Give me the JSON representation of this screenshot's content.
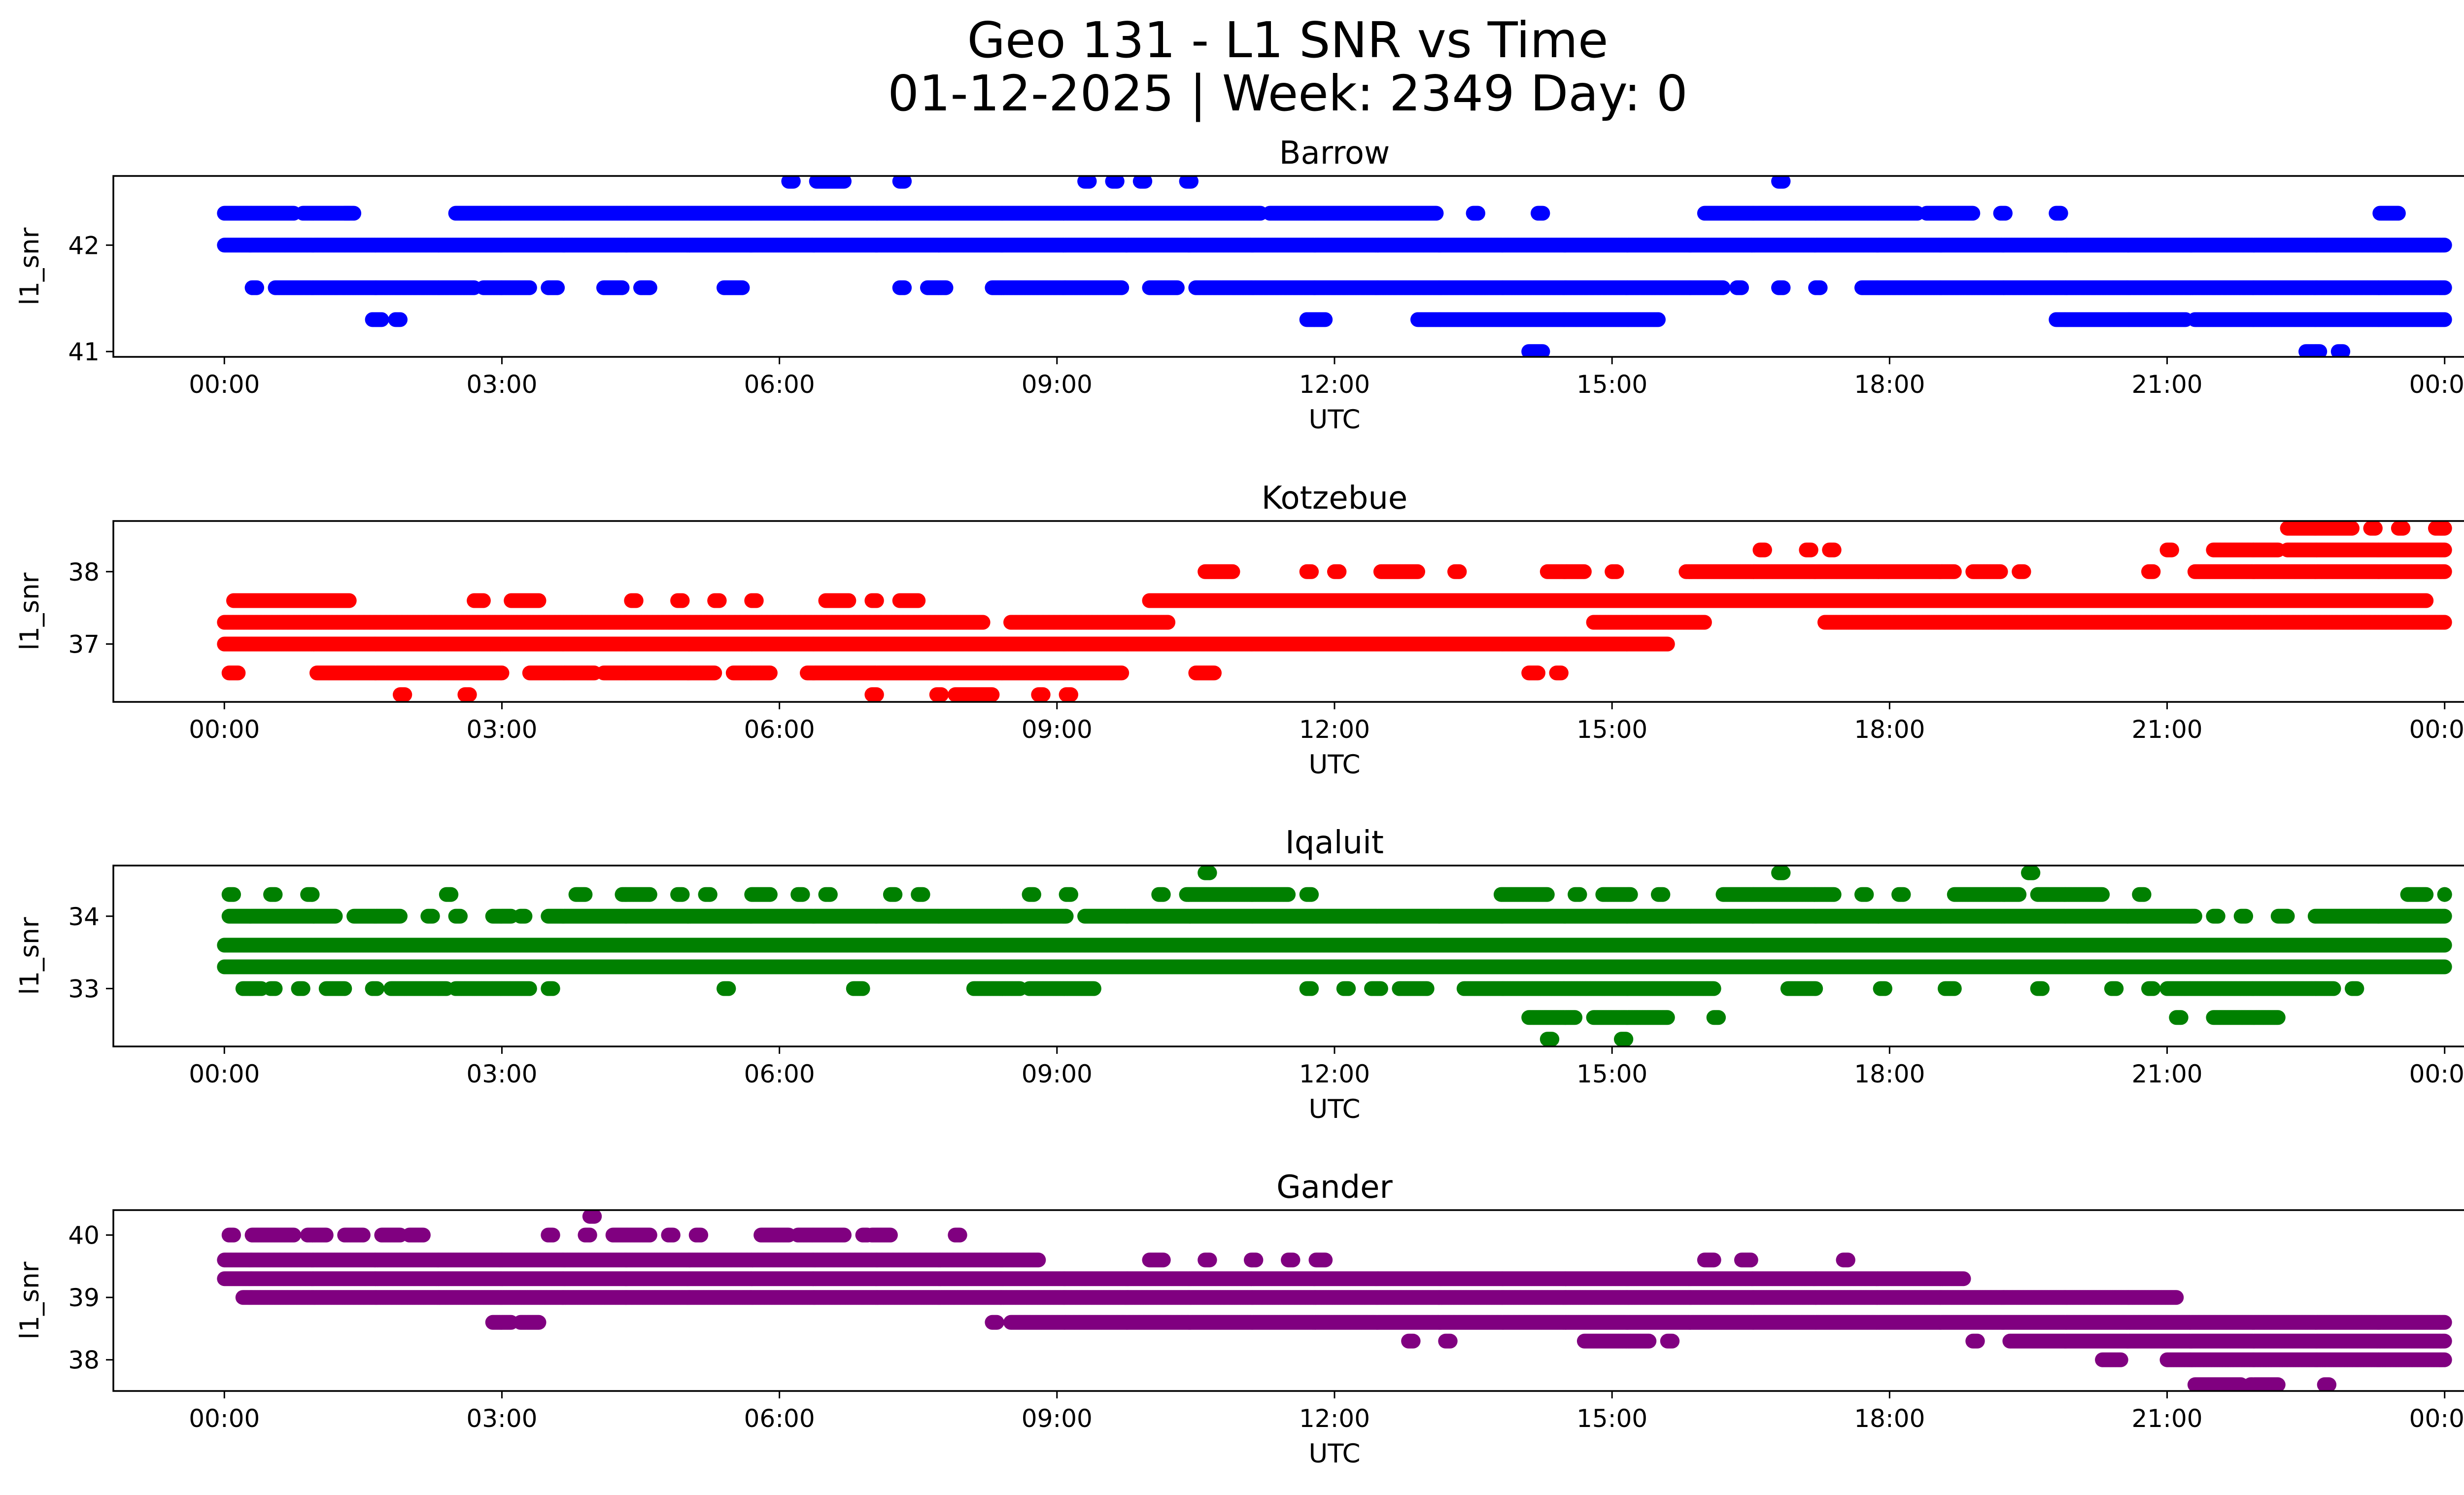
{
  "figure": {
    "title_line1": "Geo 131 - L1 SNR vs Time",
    "title_line2": "01-12-2025 | Week: 2349 Day: 0"
  },
  "chart_data": [
    {
      "type": "scatter",
      "title": "Barrow",
      "xlabel": "UTC",
      "ylabel": "l1_snr",
      "color": "#0000ff",
      "xlim_hours": [
        -1.2,
        25.2
      ],
      "ylim": [
        40.95,
        42.65
      ],
      "yticks": [
        41,
        42
      ],
      "xtick_labels": [
        "00:00",
        "03:00",
        "06:00",
        "09:00",
        "12:00",
        "15:00",
        "18:00",
        "21:00",
        "00:00"
      ],
      "levels": [
        {
          "y": 42.0,
          "ranges": [
            [
              0,
              24
            ]
          ]
        },
        {
          "y": 42.3,
          "ranges": [
            [
              0,
              0.75
            ],
            [
              0.85,
              1.4
            ],
            [
              1.3,
              1.35
            ],
            [
              2.5,
              11.2
            ],
            [
              11.3,
              13.1
            ],
            [
              13.5,
              13.55
            ],
            [
              14.2,
              14.25
            ],
            [
              16.0,
              18.3
            ],
            [
              18.4,
              18.9
            ],
            [
              19.2,
              19.25
            ],
            [
              19.8,
              19.85
            ],
            [
              23.3,
              23.5
            ]
          ]
        },
        {
          "y": 41.6,
          "ranges": [
            [
              0.3,
              0.35
            ],
            [
              0.55,
              2.7
            ],
            [
              2.8,
              3.3
            ],
            [
              3.5,
              3.6
            ],
            [
              4.1,
              4.3
            ],
            [
              4.5,
              4.6
            ],
            [
              5.4,
              5.6
            ],
            [
              7.3,
              7.35
            ],
            [
              7.6,
              7.8
            ],
            [
              8.3,
              9.7
            ],
            [
              10.0,
              10.3
            ],
            [
              10.5,
              16.2
            ],
            [
              16.35,
              16.4
            ],
            [
              16.8,
              16.85
            ],
            [
              17.2,
              17.25
            ],
            [
              17.7,
              24
            ]
          ]
        },
        {
          "y": 41.3,
          "ranges": [
            [
              1.6,
              1.7
            ],
            [
              1.85,
              1.9
            ],
            [
              11.7,
              11.9
            ],
            [
              12.9,
              15.5
            ],
            [
              19.8,
              21.2
            ],
            [
              21.3,
              24
            ]
          ]
        },
        {
          "y": 42.6,
          "ranges": [
            [
              6.1,
              6.15
            ],
            [
              6.4,
              6.7
            ],
            [
              7.3,
              7.35
            ],
            [
              9.3,
              9.35
            ],
            [
              9.6,
              9.65
            ],
            [
              9.9,
              9.95
            ],
            [
              10.4,
              10.45
            ],
            [
              16.8,
              16.85
            ]
          ]
        },
        {
          "y": 41.0,
          "ranges": [
            [
              14.1,
              14.25
            ],
            [
              22.5,
              22.65
            ],
            [
              22.85,
              22.9
            ]
          ]
        }
      ]
    },
    {
      "type": "scatter",
      "title": "Kotzebue",
      "xlabel": "UTC",
      "ylabel": "l1_snr",
      "color": "#ff0000",
      "xlim_hours": [
        -1.2,
        25.2
      ],
      "ylim": [
        36.2,
        38.7
      ],
      "yticks": [
        37,
        38
      ],
      "xtick_labels": [
        "00:00",
        "03:00",
        "06:00",
        "09:00",
        "12:00",
        "15:00",
        "18:00",
        "21:00",
        "00:00"
      ],
      "levels": [
        {
          "y": 37.0,
          "ranges": [
            [
              0,
              15.6
            ]
          ]
        },
        {
          "y": 37.3,
          "ranges": [
            [
              0,
              8.2
            ],
            [
              8.5,
              10.2
            ],
            [
              14.8,
              16.0
            ],
            [
              17.3,
              24
            ]
          ]
        },
        {
          "y": 37.6,
          "ranges": [
            [
              0.1,
              1.35
            ],
            [
              2.7,
              2.8
            ],
            [
              3.1,
              3.4
            ],
            [
              4.4,
              4.45
            ],
            [
              4.9,
              4.95
            ],
            [
              5.3,
              5.35
            ],
            [
              5.7,
              5.75
            ],
            [
              6.5,
              6.75
            ],
            [
              7.0,
              7.05
            ],
            [
              7.3,
              7.5
            ],
            [
              10.0,
              23.8
            ]
          ]
        },
        {
          "y": 36.6,
          "ranges": [
            [
              0.05,
              0.15
            ],
            [
              1.0,
              3.0
            ],
            [
              3.3,
              4.0
            ],
            [
              4.1,
              5.3
            ],
            [
              5.5,
              5.9
            ],
            [
              6.3,
              9.7
            ],
            [
              10.5,
              10.7
            ],
            [
              14.1,
              14.2
            ],
            [
              14.4,
              14.45
            ]
          ]
        },
        {
          "y": 36.3,
          "ranges": [
            [
              1.9,
              1.95
            ],
            [
              2.6,
              2.65
            ],
            [
              7.0,
              7.05
            ],
            [
              7.7,
              7.75
            ],
            [
              7.9,
              8.3
            ],
            [
              8.8,
              8.85
            ],
            [
              9.1,
              9.15
            ]
          ]
        },
        {
          "y": 38.0,
          "ranges": [
            [
              10.6,
              10.9
            ],
            [
              11.7,
              11.75
            ],
            [
              12.0,
              12.05
            ],
            [
              12.5,
              12.9
            ],
            [
              13.3,
              13.35
            ],
            [
              14.3,
              14.7
            ],
            [
              15.0,
              15.05
            ],
            [
              15.8,
              18.7
            ],
            [
              18.9,
              19.2
            ],
            [
              19.4,
              19.45
            ],
            [
              20.8,
              20.85
            ],
            [
              21.3,
              24
            ]
          ]
        },
        {
          "y": 38.3,
          "ranges": [
            [
              16.6,
              16.65
            ],
            [
              17.1,
              17.15
            ],
            [
              17.35,
              17.4
            ],
            [
              21.0,
              21.05
            ],
            [
              21.5,
              22.2
            ],
            [
              22.3,
              24
            ]
          ]
        },
        {
          "y": 38.6,
          "ranges": [
            [
              22.3,
              23.0
            ],
            [
              23.2,
              23.25
            ],
            [
              23.5,
              23.55
            ],
            [
              23.9,
              24
            ]
          ]
        }
      ]
    },
    {
      "type": "scatter",
      "title": "Iqaluit",
      "xlabel": "UTC",
      "ylabel": "l1_snr",
      "color": "#008000",
      "xlim_hours": [
        -1.2,
        25.2
      ],
      "ylim": [
        32.2,
        34.7
      ],
      "yticks": [
        33,
        34
      ],
      "xtick_labels": [
        "00:00",
        "03:00",
        "06:00",
        "09:00",
        "12:00",
        "15:00",
        "18:00",
        "21:00",
        "00:00"
      ],
      "levels": [
        {
          "y": 33.6,
          "ranges": [
            [
              0,
              24
            ]
          ]
        },
        {
          "y": 33.3,
          "ranges": [
            [
              0,
              24
            ]
          ]
        },
        {
          "y": 34.0,
          "ranges": [
            [
              0.05,
              1.2
            ],
            [
              1.4,
              1.9
            ],
            [
              2.2,
              2.25
            ],
            [
              2.5,
              2.55
            ],
            [
              2.9,
              3.1
            ],
            [
              3.2,
              3.25
            ],
            [
              3.5,
              9.1
            ],
            [
              9.3,
              21.3
            ],
            [
              21.5,
              21.55
            ],
            [
              21.8,
              21.85
            ],
            [
              22.2,
              22.3
            ],
            [
              22.6,
              24
            ]
          ]
        },
        {
          "y": 33.0,
          "ranges": [
            [
              0.2,
              0.4
            ],
            [
              0.5,
              0.55
            ],
            [
              0.8,
              0.85
            ],
            [
              1.1,
              1.3
            ],
            [
              1.6,
              1.65
            ],
            [
              1.8,
              2.4
            ],
            [
              2.5,
              3.3
            ],
            [
              3.5,
              3.55
            ],
            [
              5.4,
              5.45
            ],
            [
              6.8,
              6.9
            ],
            [
              8.1,
              8.6
            ],
            [
              8.7,
              9.4
            ],
            [
              11.7,
              11.75
            ],
            [
              12.1,
              12.15
            ],
            [
              12.4,
              12.5
            ],
            [
              12.7,
              13.0
            ],
            [
              13.4,
              16.1
            ],
            [
              16.9,
              17.2
            ],
            [
              17.9,
              17.95
            ],
            [
              18.6,
              18.7
            ],
            [
              19.6,
              19.65
            ],
            [
              20.4,
              20.45
            ],
            [
              20.8,
              20.85
            ],
            [
              21.0,
              22.8
            ],
            [
              23.0,
              23.05
            ]
          ]
        },
        {
          "y": 34.3,
          "ranges": [
            [
              0.05,
              0.1
            ],
            [
              0.5,
              0.55
            ],
            [
              0.9,
              0.95
            ],
            [
              2.4,
              2.45
            ],
            [
              3.8,
              3.9
            ],
            [
              4.3,
              4.6
            ],
            [
              4.9,
              4.95
            ],
            [
              5.2,
              5.25
            ],
            [
              5.7,
              5.9
            ],
            [
              6.2,
              6.25
            ],
            [
              6.5,
              6.55
            ],
            [
              7.2,
              7.25
            ],
            [
              7.5,
              7.55
            ],
            [
              8.7,
              8.75
            ],
            [
              9.1,
              9.15
            ],
            [
              10.1,
              10.15
            ],
            [
              10.4,
              11.5
            ],
            [
              11.7,
              11.75
            ],
            [
              13.8,
              14.3
            ],
            [
              14.6,
              14.65
            ],
            [
              14.9,
              15.2
            ],
            [
              15.5,
              15.55
            ],
            [
              16.2,
              17.4
            ],
            [
              17.7,
              17.75
            ],
            [
              18.1,
              18.15
            ],
            [
              18.7,
              19.4
            ],
            [
              19.6,
              20.3
            ],
            [
              20.7,
              20.75
            ],
            [
              23.6,
              23.8
            ],
            [
              24.0,
              24
            ]
          ]
        },
        {
          "y": 34.6,
          "ranges": [
            [
              10.6,
              10.65
            ],
            [
              16.8,
              16.85
            ],
            [
              19.5,
              19.55
            ]
          ]
        },
        {
          "y": 32.6,
          "ranges": [
            [
              14.1,
              14.6
            ],
            [
              14.8,
              15.6
            ],
            [
              16.1,
              16.15
            ],
            [
              21.1,
              21.15
            ],
            [
              21.5,
              22.2
            ]
          ]
        },
        {
          "y": 32.3,
          "ranges": [
            [
              14.3,
              14.35
            ],
            [
              15.1,
              15.15
            ]
          ]
        }
      ]
    },
    {
      "type": "scatter",
      "title": "Gander",
      "xlabel": "UTC",
      "ylabel": "l1_snr",
      "color": "#800080",
      "xlim_hours": [
        -1.2,
        25.2
      ],
      "ylim": [
        37.5,
        40.4
      ],
      "yticks": [
        38,
        39,
        40
      ],
      "xtick_labels": [
        "00:00",
        "03:00",
        "06:00",
        "09:00",
        "12:00",
        "15:00",
        "18:00",
        "21:00",
        "00:00"
      ],
      "levels": [
        {
          "y": 39.3,
          "ranges": [
            [
              0,
              18.8
            ]
          ]
        },
        {
          "y": 39.0,
          "ranges": [
            [
              0.2,
              21.1
            ]
          ]
        },
        {
          "y": 39.6,
          "ranges": [
            [
              0,
              8.8
            ],
            [
              10.0,
              10.15
            ],
            [
              10.6,
              10.65
            ],
            [
              11.1,
              11.15
            ],
            [
              11.5,
              11.55
            ],
            [
              11.8,
              11.9
            ],
            [
              16.0,
              16.1
            ],
            [
              16.4,
              16.5
            ],
            [
              17.5,
              17.55
            ]
          ]
        },
        {
          "y": 40.0,
          "ranges": [
            [
              0.05,
              0.1
            ],
            [
              0.3,
              0.75
            ],
            [
              0.9,
              1.1
            ],
            [
              1.3,
              1.5
            ],
            [
              1.7,
              1.9
            ],
            [
              2.0,
              2.15
            ],
            [
              3.5,
              3.55
            ],
            [
              3.9,
              3.95
            ],
            [
              4.2,
              4.6
            ],
            [
              4.8,
              4.85
            ],
            [
              5.1,
              5.15
            ],
            [
              5.8,
              6.1
            ],
            [
              6.2,
              6.7
            ],
            [
              6.9,
              6.95
            ],
            [
              7.0,
              7.2
            ],
            [
              7.9,
              7.95
            ]
          ]
        },
        {
          "y": 40.3,
          "ranges": [
            [
              3.95,
              4.0
            ]
          ]
        },
        {
          "y": 38.6,
          "ranges": [
            [
              2.9,
              3.1
            ],
            [
              3.2,
              3.4
            ],
            [
              8.3,
              8.35
            ],
            [
              8.5,
              24
            ]
          ]
        },
        {
          "y": 38.3,
          "ranges": [
            [
              12.8,
              12.85
            ],
            [
              13.2,
              13.25
            ],
            [
              14.7,
              15.4
            ],
            [
              15.6,
              15.65
            ],
            [
              18.9,
              18.95
            ],
            [
              19.3,
              24
            ]
          ]
        },
        {
          "y": 38.0,
          "ranges": [
            [
              20.3,
              20.5
            ],
            [
              21.0,
              24
            ]
          ]
        },
        {
          "y": 37.6,
          "ranges": [
            [
              21.3,
              21.8
            ],
            [
              21.9,
              22.2
            ],
            [
              22.7,
              22.75
            ]
          ]
        }
      ]
    }
  ]
}
